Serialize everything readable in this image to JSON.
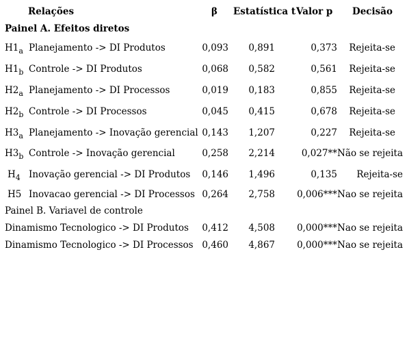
{
  "headers": {
    "relacoes": "Relações",
    "beta": "β",
    "t": "Estatística t",
    "p": "Valor p",
    "decisao": "Decisão"
  },
  "panel_a": "Painel A. Efeitos diretos",
  "panel_b": "Painel B. Variavel de controle",
  "rows_a": [
    {
      "code": "H1",
      "sub": "a",
      "rel": "Planejamento -> DI Produtos",
      "beta": "0,093",
      "t": "0,891",
      "p": "0,373",
      "dec": "Rejeita-se"
    },
    {
      "code": "H1",
      "sub": "b",
      "rel": "Controle -> DI Produtos",
      "beta": "0,068",
      "t": "0,582",
      "p": "0,561",
      "dec": "Rejeita-se"
    },
    {
      "code": "H2",
      "sub": "a",
      "rel": "Planejamento -> DI Processos",
      "beta": "0,019",
      "t": "0,183",
      "p": "0,855",
      "dec": "Rejeita-se"
    },
    {
      "code": "H2",
      "sub": "b",
      "rel": "Controle -> DI Processos",
      "beta": "0,045",
      "t": "0,415",
      "p": "0,678",
      "dec": "Rejeita-se"
    },
    {
      "code": "H3",
      "sub": "a",
      "rel": "Planejamento -> Inovação gerencial",
      "beta": "0,143",
      "t": "1,207",
      "p": "0,227",
      "dec": "Rejeita-se"
    },
    {
      "code": "H3",
      "sub": "b",
      "rel": "Controle -> Inovação gerencial",
      "beta": "0,258",
      "t": "2,214",
      "p": "0,027**",
      "dec": "Não se rejeita"
    },
    {
      "code": "H",
      "sub": "4",
      "rel": "Inovação gerencial -> DI Produtos",
      "beta": "0,146",
      "t": "1,496",
      "p": "0,135",
      "dec": "Rejeita-se"
    },
    {
      "code": "H5",
      "sub": "",
      "rel": "Inovacao gerencial -> DI Processos",
      "beta": "0,264",
      "t": "2,758",
      "p": "0,006***",
      "dec": "Nao se rejeita"
    }
  ],
  "rows_b": [
    {
      "rel": "Dinamismo Tecnologico -> DI Produtos",
      "beta": "0,412",
      "t": "4,508",
      "p": "0,000***",
      "dec": "Nao se rejeita"
    },
    {
      "rel": "Dinamismo Tecnologico -> DI Processos",
      "beta": "0,460",
      "t": "4,867",
      "p": "0,000***",
      "dec": "Nao se rejeita"
    }
  ]
}
